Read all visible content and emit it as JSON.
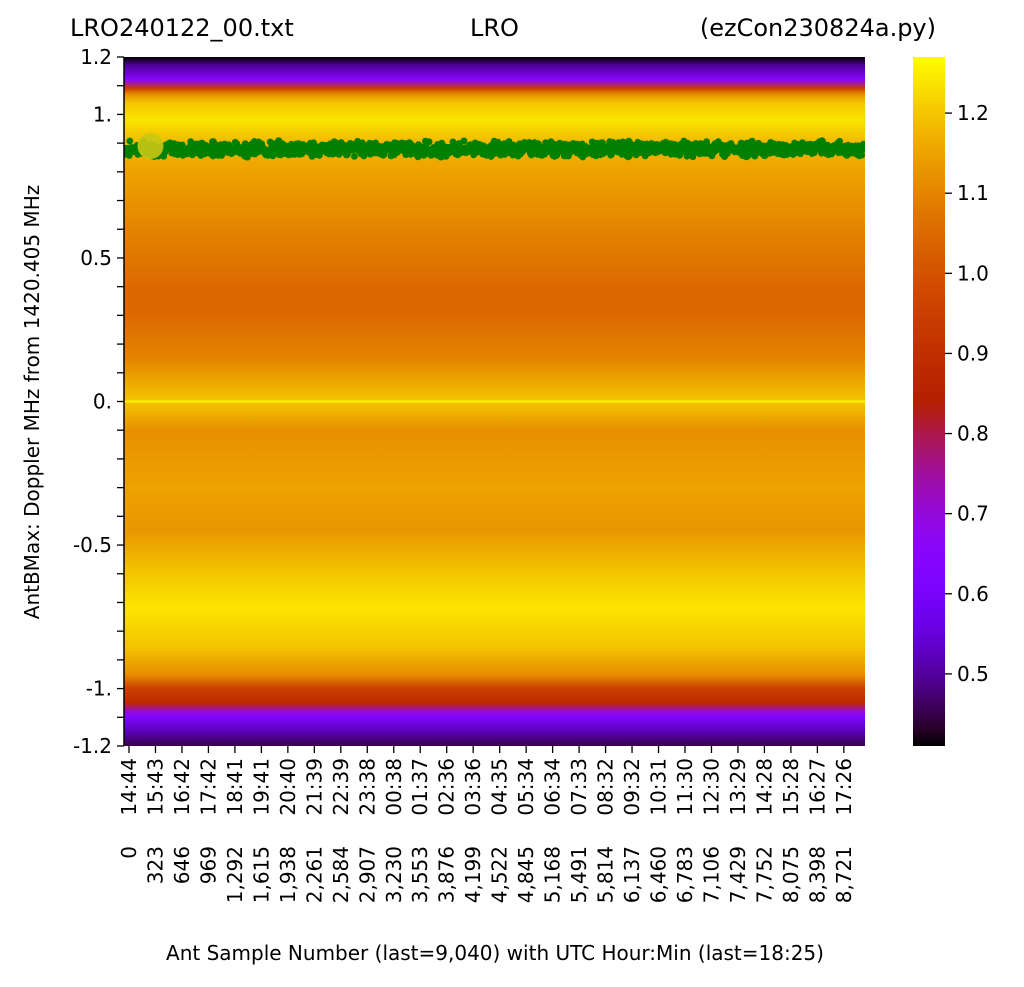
{
  "title": {
    "left": "LRO240122_00.txt",
    "center": "LRO",
    "right": "(ezCon230824a.py)"
  },
  "chart_data": {
    "type": "heatmap",
    "xlabel": "Ant Sample Number (last=9,040) with UTC Hour:Min (last=18:25)",
    "ylabel": "AntBMax:  Doppler MHz from 1420.405 MHz",
    "xlim": [
      0,
      9040
    ],
    "ylim": [
      -1.2,
      1.2
    ],
    "x_ticks": [
      0,
      323,
      646,
      969,
      1292,
      1615,
      1938,
      2261,
      2584,
      2907,
      3230,
      3553,
      3876,
      4199,
      4522,
      4845,
      5168,
      5491,
      5814,
      6137,
      6460,
      6783,
      7106,
      7429,
      7752,
      8075,
      8398,
      8721
    ],
    "x_tick_labels": [
      "0",
      "323",
      "646",
      "969",
      "1,292",
      "1,615",
      "1,938",
      "2,261",
      "2,584",
      "2,907",
      "3,230",
      "3,553",
      "3,876",
      "4,199",
      "4,522",
      "4,845",
      "5,168",
      "5,491",
      "5,814",
      "6,137",
      "6,460",
      "6,783",
      "7,106",
      "7,429",
      "7,752",
      "8,075",
      "8,398",
      "8,721"
    ],
    "x_time_labels": [
      "14:44",
      "15:43",
      "16:42",
      "17:42",
      "18:41",
      "19:41",
      "20:40",
      "21:39",
      "22:39",
      "23:38",
      "00:38",
      "01:37",
      "02:36",
      "03:36",
      "04:35",
      "05:34",
      "06:34",
      "07:33",
      "08:32",
      "09:32",
      "10:31",
      "11:30",
      "12:30",
      "13:29",
      "14:28",
      "15:28",
      "16:27",
      "17:26"
    ],
    "y_ticks": [
      1.2,
      1.0,
      0.5,
      0.0,
      -0.5,
      -1.0,
      -1.2
    ],
    "y_tick_labels": [
      "1.2",
      "1.",
      "0.5",
      "0.",
      "-0.5",
      "-1.",
      "-1.2"
    ],
    "y_minor_step": 0.1,
    "colormap": "gnuplot",
    "colorbar": {
      "min": 0.41,
      "max": 1.27,
      "ticks": [
        0.5,
        0.6,
        0.7,
        0.8,
        0.9,
        1.0,
        1.1,
        1.2
      ],
      "tick_labels": [
        "0.5",
        "0.6",
        "0.7",
        "0.8",
        "0.9",
        "1.0",
        "1.1",
        "1.2"
      ]
    },
    "profile": {
      "doppler_mhz": [
        1.2,
        1.17,
        1.12,
        1.09,
        1.07,
        1.04,
        0.98,
        0.9,
        0.8,
        0.6,
        0.4,
        0.3,
        0.15,
        0.0,
        -0.1,
        -0.3,
        -0.45,
        -0.6,
        -0.72,
        -0.85,
        -0.95,
        -1.0,
        -1.05,
        -1.08,
        -1.1,
        -1.15,
        -1.2
      ],
      "value": [
        0.41,
        0.5,
        0.65,
        0.95,
        1.12,
        1.2,
        1.24,
        1.18,
        1.15,
        1.1,
        1.05,
        1.05,
        1.1,
        1.2,
        1.12,
        1.15,
        1.13,
        1.2,
        1.24,
        1.2,
        1.12,
        0.95,
        0.88,
        0.7,
        0.62,
        0.52,
        0.45
      ]
    },
    "highlight_row": {
      "doppler_mhz": 0.0,
      "value": 1.26
    },
    "series": [
      {
        "type": "scatter",
        "color": "#008000",
        "y_center": 0.88,
        "y_spread": 0.03
      }
    ],
    "marker": {
      "x": 323,
      "y": 0.89,
      "color": "#c8c814"
    }
  }
}
